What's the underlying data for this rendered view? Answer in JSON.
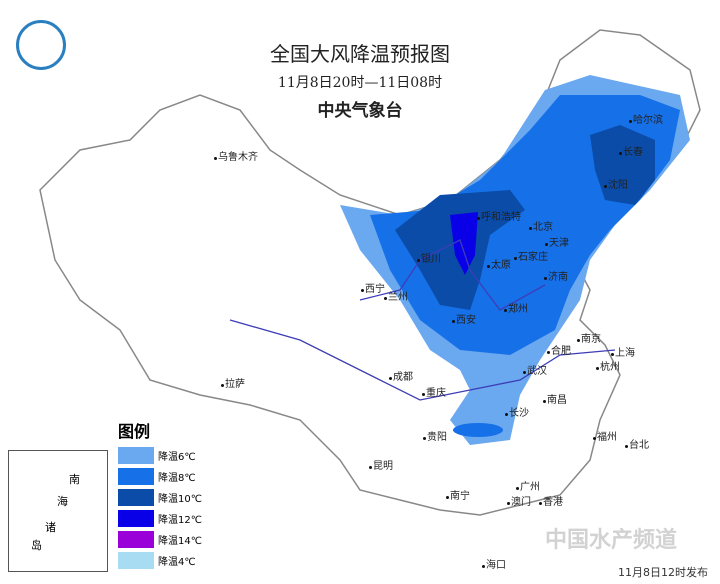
{
  "header": {
    "title": "全国大风降温预报图",
    "period": "11月8日20时—11日08时",
    "issuer": "中央气象台"
  },
  "legend": {
    "title": "图例",
    "items": [
      {
        "label": "降温6℃",
        "color": "#6aa8f0"
      },
      {
        "label": "降温8℃",
        "color": "#1670e8"
      },
      {
        "label": "降温10℃",
        "color": "#0a4ca8"
      },
      {
        "label": "降温12℃",
        "color": "#0a00e8"
      },
      {
        "label": "降温14℃",
        "color": "#9a00d8"
      },
      {
        "label": "降温4℃",
        "color": "#a8dcf2"
      }
    ]
  },
  "cities": [
    "乌鲁木齐",
    "哈尔滨",
    "长春",
    "沈阳",
    "呼和浩特",
    "北京",
    "天津",
    "银川",
    "太原",
    "石家庄",
    "济南",
    "西宁",
    "兰州",
    "西安",
    "郑州",
    "合肥",
    "南京",
    "上海",
    "拉萨",
    "成都",
    "重庆",
    "武汉",
    "杭州",
    "南昌",
    "长沙",
    "贵阳",
    "福州",
    "台北",
    "昆明",
    "广州",
    "南宁",
    "澳门",
    "香港",
    "海口"
  ],
  "inset": {
    "labels": [
      "南",
      "海",
      "诸",
      "岛"
    ]
  },
  "footer": {
    "issued": "11月8日12时发布",
    "watermark": "中国水产频道"
  }
}
